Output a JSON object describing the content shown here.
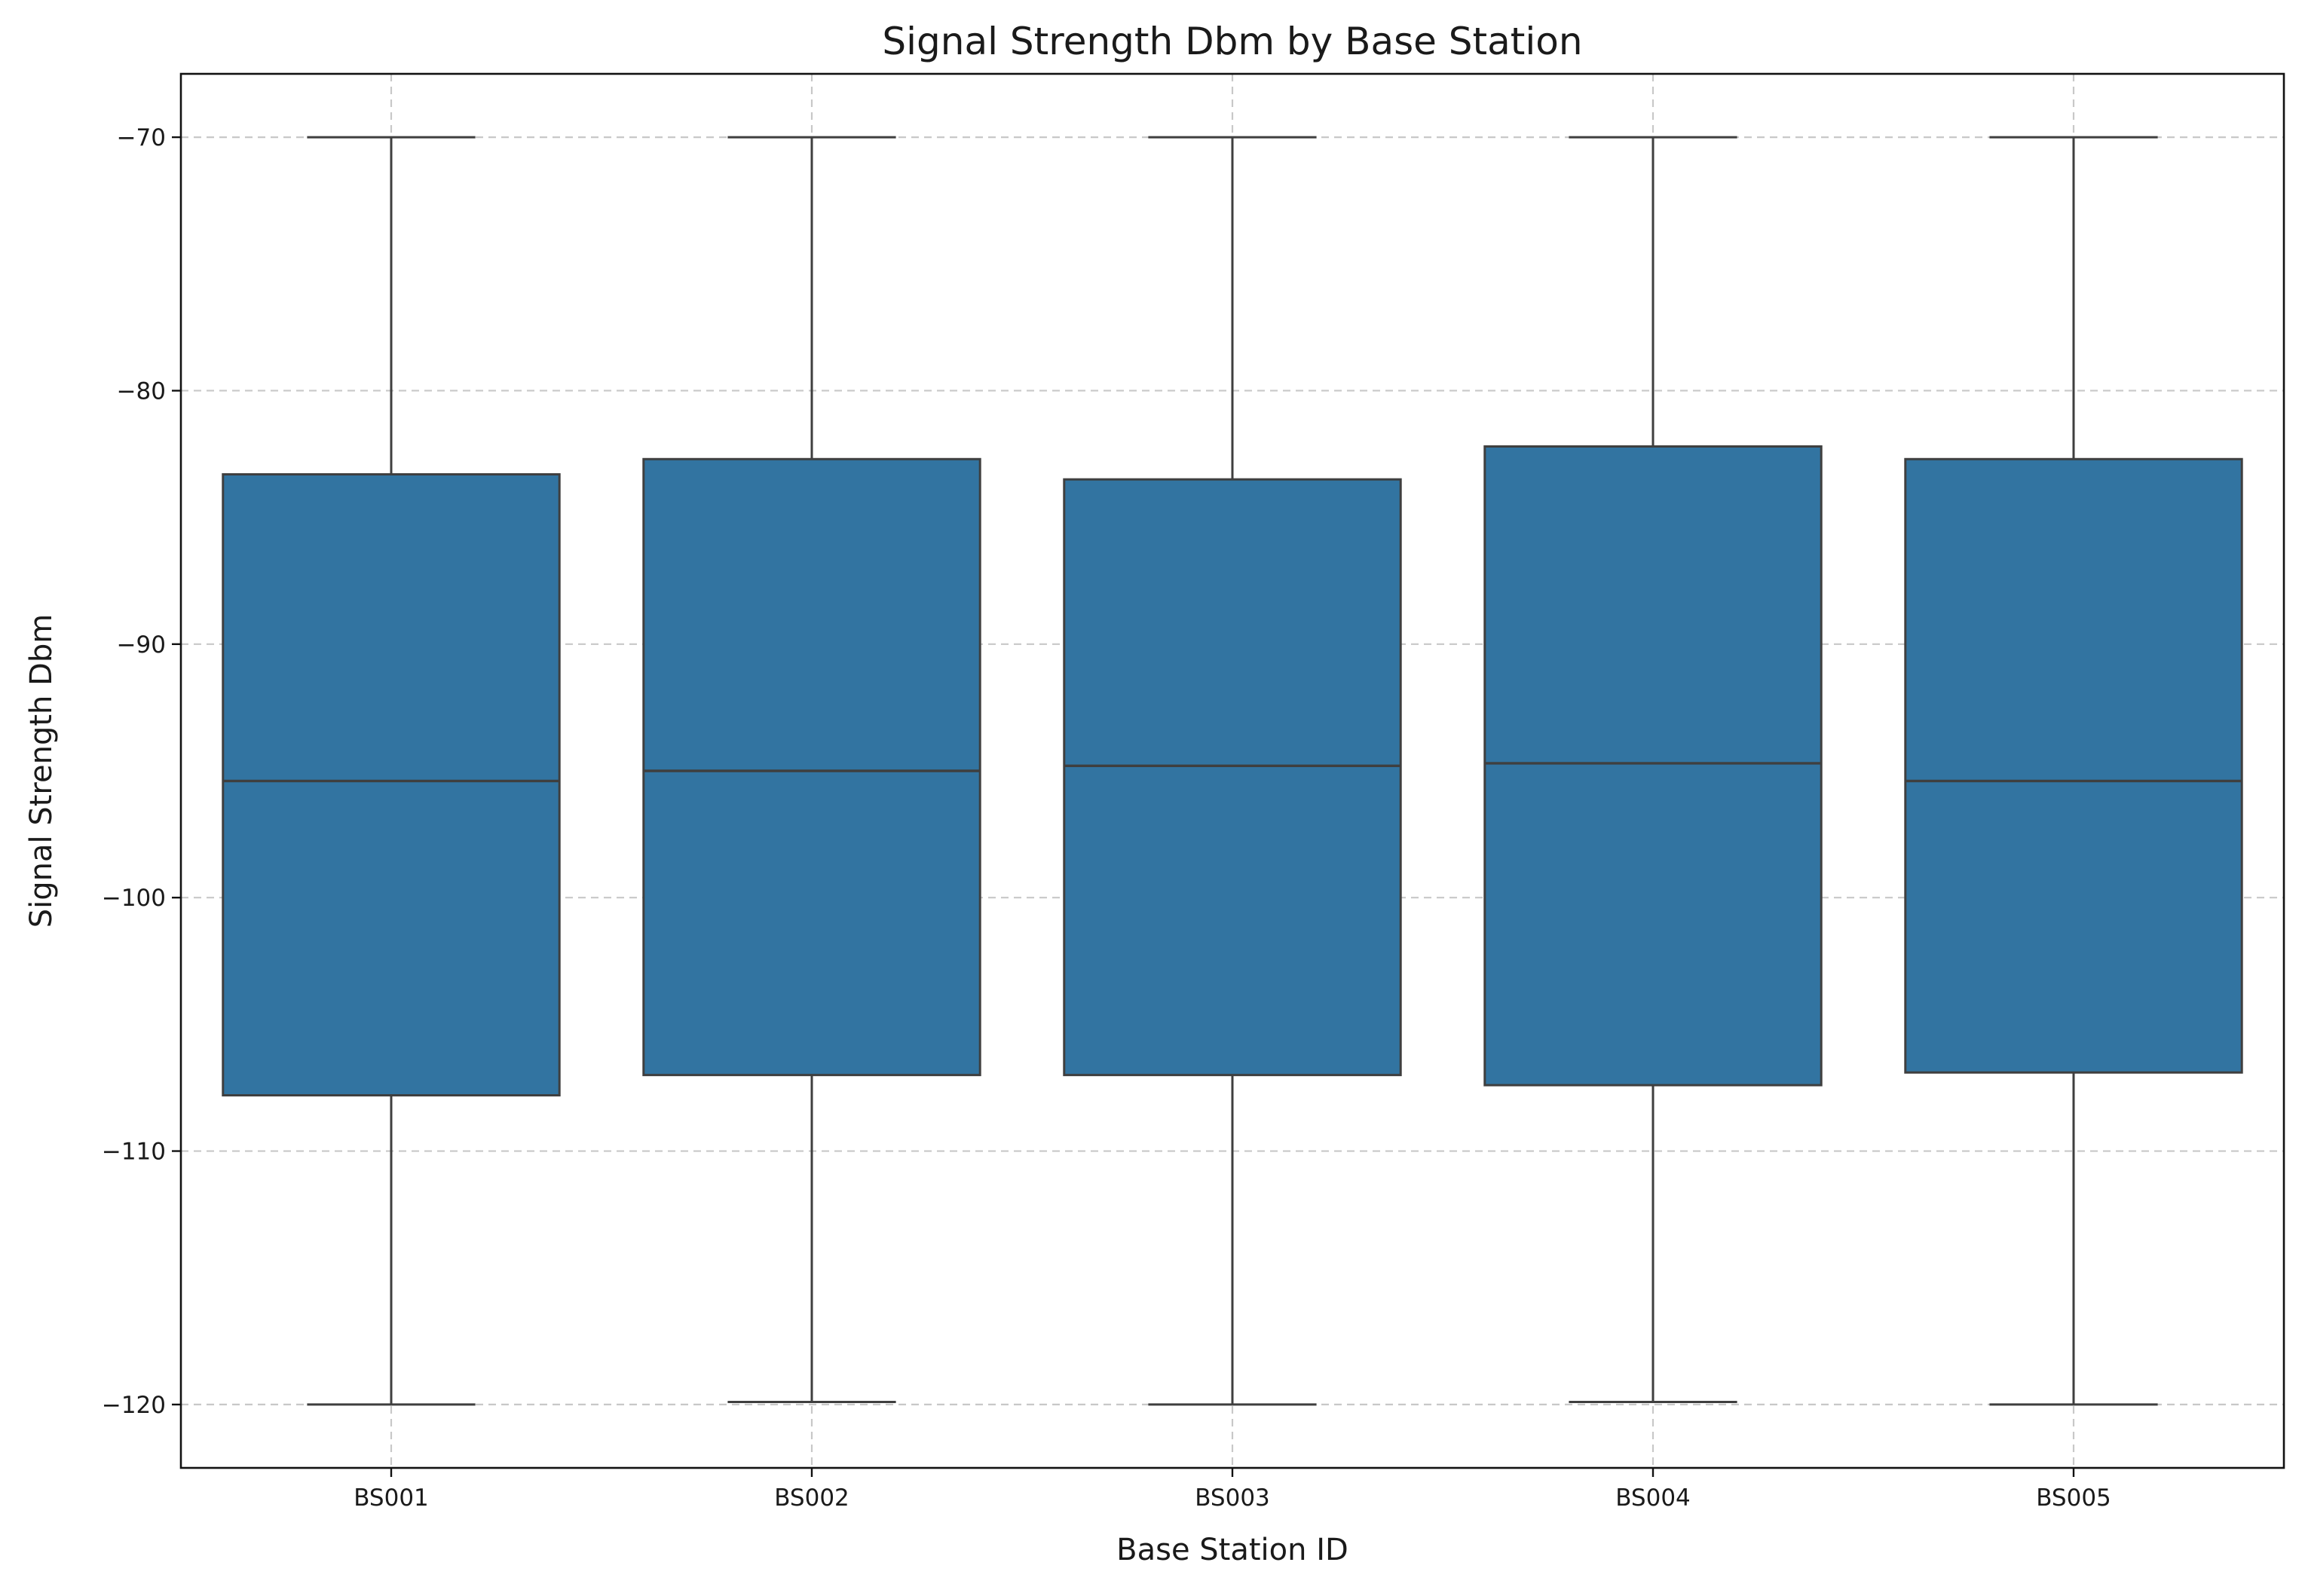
{
  "chart_data": {
    "type": "box",
    "title": "Signal Strength Dbm by Base Station",
    "xlabel": "Base Station ID",
    "ylabel": "Signal Strength Dbm",
    "ylim": [
      -122.5,
      -67.5
    ],
    "yticks": [
      -70,
      -80,
      -90,
      -100,
      -110,
      -120
    ],
    "ytick_labels": [
      "−70",
      "−80",
      "−90",
      "−100",
      "−110",
      "−120"
    ],
    "grid": true,
    "box_color": "#3274a1",
    "categories": [
      "BS001",
      "BS002",
      "BS003",
      "BS004",
      "BS005"
    ],
    "boxes": [
      {
        "category": "BS001",
        "min": -120.0,
        "q1": -107.8,
        "median": -95.4,
        "q3": -83.3,
        "max": -70.0
      },
      {
        "category": "BS002",
        "min": -119.9,
        "q1": -107.0,
        "median": -95.0,
        "q3": -82.7,
        "max": -70.0
      },
      {
        "category": "BS003",
        "min": -120.0,
        "q1": -107.0,
        "median": -94.8,
        "q3": -83.5,
        "max": -70.0
      },
      {
        "category": "BS004",
        "min": -119.9,
        "q1": -107.4,
        "median": -94.7,
        "q3": -82.2,
        "max": -70.0
      },
      {
        "category": "BS005",
        "min": -120.0,
        "q1": -106.9,
        "median": -95.4,
        "q3": -82.7,
        "max": -70.0
      }
    ]
  }
}
